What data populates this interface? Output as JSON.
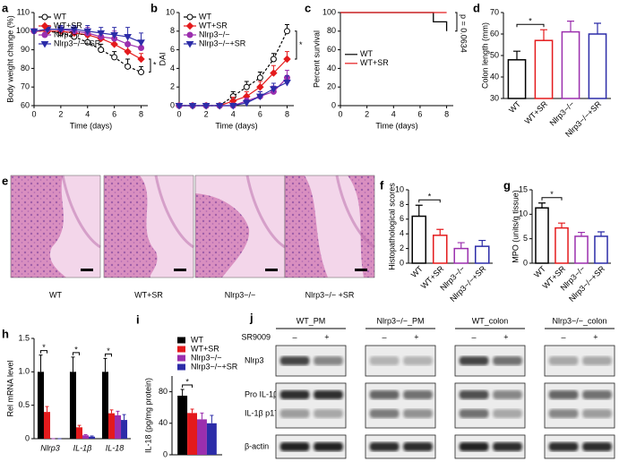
{
  "chart_data": [
    {
      "panel": "a",
      "type": "line",
      "ylabel": "Body weight change (%)",
      "xlabel": "Time (days)",
      "x": [
        0,
        1,
        2,
        3,
        4,
        5,
        6,
        7,
        8
      ],
      "xlim": [
        0,
        8.5
      ],
      "xticks": [
        0,
        2,
        4,
        6,
        8
      ],
      "ylim": [
        60,
        110
      ],
      "yticks": [
        60,
        70,
        80,
        90,
        100,
        110
      ],
      "legend": "upper left",
      "annotations": [
        "*"
      ],
      "series": [
        {
          "name": "WT",
          "color": "#000000",
          "marker": "open-circle",
          "values": [
            100,
            100,
            99,
            97,
            94,
            90,
            86,
            81,
            78
          ],
          "errors": [
            1,
            1,
            2,
            2,
            3,
            3,
            3,
            4,
            3
          ]
        },
        {
          "name": "WT+SR",
          "color": "#e41a1c",
          "marker": "diamond",
          "values": [
            100,
            100,
            100,
            99,
            98,
            96,
            93,
            89,
            85
          ],
          "errors": [
            1,
            1,
            1,
            2,
            2,
            3,
            3,
            3,
            3
          ]
        },
        {
          "name": "Nlrp3−/−",
          "color": "#9b2fae",
          "marker": "circle",
          "values": [
            100,
            101,
            101,
            100,
            99,
            97,
            96,
            93,
            91
          ],
          "errors": [
            1,
            2,
            2,
            2,
            3,
            3,
            4,
            4,
            4
          ]
        },
        {
          "name": "Nlrp3−/−+SR",
          "color": "#2c2ca8",
          "marker": "triangle-down",
          "values": [
            100,
            101,
            101,
            101,
            100,
            99,
            98,
            97,
            94
          ],
          "errors": [
            1,
            2,
            2,
            2,
            3,
            3,
            4,
            5,
            5
          ]
        }
      ]
    },
    {
      "panel": "b",
      "type": "line",
      "ylabel": "DAI",
      "xlabel": "Time (days)",
      "x": [
        0,
        1,
        2,
        3,
        4,
        5,
        6,
        7,
        8
      ],
      "xlim": [
        0,
        8.5
      ],
      "xticks": [
        0,
        2,
        4,
        6,
        8
      ],
      "ylim": [
        0,
        10
      ],
      "yticks": [
        0,
        2,
        4,
        6,
        8,
        10
      ],
      "legend": "upper left",
      "annotations": [
        "*"
      ],
      "series": [
        {
          "name": "WT",
          "color": "#000000",
          "marker": "open-circle",
          "values": [
            0,
            0,
            0,
            0,
            1,
            2,
            3,
            5,
            8
          ],
          "errors": [
            0,
            0,
            0,
            0,
            0.5,
            0.6,
            0.6,
            0.6,
            0.7
          ]
        },
        {
          "name": "WT+SR",
          "color": "#e41a1c",
          "marker": "diamond",
          "values": [
            0,
            0,
            0,
            0,
            0.5,
            1,
            2,
            3.5,
            5
          ],
          "errors": [
            0,
            0,
            0,
            0,
            0.4,
            0.5,
            0.6,
            0.8,
            0.8
          ]
        },
        {
          "name": "Nlrp3−/−",
          "color": "#9b2fae",
          "marker": "circle",
          "values": [
            0,
            0,
            0,
            0,
            0,
            0.5,
            1,
            1.5,
            3
          ],
          "errors": [
            0,
            0,
            0,
            0,
            0,
            0.3,
            0.5,
            0.6,
            0.8
          ]
        },
        {
          "name": "Nlrp3−/−+SR",
          "color": "#2c2ca8",
          "marker": "triangle-down",
          "values": [
            0,
            0,
            0,
            0,
            0,
            0.3,
            1,
            1.8,
            2.5
          ],
          "errors": [
            0,
            0,
            0,
            0,
            0,
            0.3,
            0.5,
            0.6,
            0.7
          ]
        }
      ]
    },
    {
      "panel": "c",
      "type": "step",
      "ylabel": "Percent survival",
      "xlabel": "Time (days)",
      "x": [
        0,
        1,
        2,
        3,
        4,
        5,
        6,
        7,
        8
      ],
      "xlim": [
        0,
        8.5
      ],
      "xticks": [
        0,
        2,
        4,
        6,
        8
      ],
      "ylim": [
        0,
        100
      ],
      "yticks": [
        0,
        20,
        40,
        60,
        80,
        100
      ],
      "legend": "center left",
      "annotations": [
        "p = 0.0634"
      ],
      "series": [
        {
          "name": "WT",
          "color": "#000000",
          "values": [
            100,
            100,
            100,
            100,
            100,
            100,
            100,
            90,
            80
          ]
        },
        {
          "name": "WT+SR",
          "color": "#e41a1c",
          "values": [
            100,
            100,
            100,
            100,
            100,
            100,
            100,
            100,
            100
          ]
        }
      ]
    },
    {
      "panel": "d",
      "type": "bar",
      "ylabel": "Colon length (mm)",
      "categories": [
        "WT",
        "WT+SR",
        "Nlrp3−/−",
        "Nlrp3−/−+SR"
      ],
      "values": [
        48,
        57,
        61,
        60
      ],
      "errors": [
        4,
        5,
        5,
        5
      ],
      "colors": [
        "#000000",
        "#e41a1c",
        "#9b2fae",
        "#2c2ca8"
      ],
      "ylim": [
        30,
        70
      ],
      "yticks": [
        30,
        40,
        50,
        60,
        70
      ],
      "annotations": [
        "*"
      ]
    },
    {
      "panel": "f",
      "type": "bar",
      "ylabel": "Histopathological scores",
      "categories": [
        "WT",
        "WT+SR",
        "Nlrp3−/−",
        "Nlrp3−/−+SR"
      ],
      "values": [
        6.4,
        3.8,
        2.0,
        2.3
      ],
      "errors": [
        1.5,
        0.8,
        0.8,
        0.8
      ],
      "colors": [
        "#000000",
        "#e41a1c",
        "#9b2fae",
        "#2c2ca8"
      ],
      "ylim": [
        0,
        10
      ],
      "yticks": [
        0,
        2,
        4,
        6,
        8,
        10
      ],
      "annotations": [
        "*"
      ]
    },
    {
      "panel": "g",
      "type": "bar",
      "ylabel": "MPO (units/g tissue)",
      "categories": [
        "WT",
        "WT+SR",
        "Nlrp3−/−",
        "Nlrp3−/−+SR"
      ],
      "values": [
        11.3,
        7.2,
        5.5,
        5.5
      ],
      "errors": [
        1,
        1,
        0.8,
        0.9
      ],
      "colors": [
        "#000000",
        "#e41a1c",
        "#9b2fae",
        "#2c2ca8"
      ],
      "ylim": [
        0,
        15
      ],
      "yticks": [
        0,
        5,
        10,
        15
      ],
      "annotations": [
        "*"
      ]
    },
    {
      "panel": "h",
      "type": "grouped_bar",
      "ylabel": "Rel mRNA level",
      "categories": [
        "Nlrp3",
        "IL-1β",
        "IL-18"
      ],
      "italic_categories": true,
      "ylim": [
        0,
        1.5
      ],
      "yticks": [
        0,
        0.5,
        {
          "value": 1,
          "label": "1.0"
        },
        1.5
      ],
      "annotations": [
        "*",
        "*",
        "*"
      ],
      "series": [
        {
          "name": "WT",
          "color": "#000000",
          "values": [
            1,
            1,
            1
          ],
          "errors": [
            0.25,
            0.22,
            0.2
          ]
        },
        {
          "name": "WT+SR",
          "color": "#e41a1c",
          "values": [
            0.4,
            0.17,
            0.38
          ],
          "errors": [
            0.08,
            0.03,
            0.05
          ]
        },
        {
          "name": "Nlrp3−/−",
          "color": "#9b2fae",
          "values": [
            0,
            0.05,
            0.35
          ],
          "errors": [
            0,
            0.01,
            0.06
          ]
        },
        {
          "name": "Nlrp3−/−+SR",
          "color": "#2c2ca8",
          "values": [
            0,
            0.03,
            0.28
          ],
          "errors": [
            0,
            0.01,
            0.08
          ]
        }
      ]
    },
    {
      "panel": "i",
      "type": "grouped_bar",
      "ylabel": "IL-18 (pg/mg protein)",
      "categories": [
        null
      ],
      "ylim": [
        0,
        100
      ],
      "yticks": [
        0,
        40,
        80
      ],
      "legend": "above",
      "annotations": [
        "*"
      ],
      "series": [
        {
          "name": "WT",
          "color": "#000000",
          "values": [
            75
          ],
          "errors": [
            8
          ]
        },
        {
          "name": "WT+SR",
          "color": "#e41a1c",
          "values": [
            53
          ],
          "errors": [
            5
          ]
        },
        {
          "name": "Nlrp3−/−",
          "color": "#9b2fae",
          "values": [
            45
          ],
          "errors": [
            8
          ]
        },
        {
          "name": "Nlrp3−/−+SR",
          "color": "#2c2ca8",
          "values": [
            40
          ],
          "errors": [
            10
          ]
        }
      ]
    }
  ],
  "histology": {
    "panel": "e",
    "labels": [
      "WT",
      "WT+SR",
      "Nlrp3−/−",
      "Nlrp3−/− +SR"
    ]
  },
  "blot": {
    "panel": "j",
    "treatment": "SR9009",
    "groups": [
      "WT_PM",
      "Nlrp3−/−_PM",
      "WT_colon",
      "Nlrp3−/−_colon"
    ],
    "lanes": [
      "–",
      "+"
    ],
    "rows": [
      "Nlrp3",
      "Pro IL-1β",
      "IL-1β p17",
      "β-actin"
    ]
  }
}
